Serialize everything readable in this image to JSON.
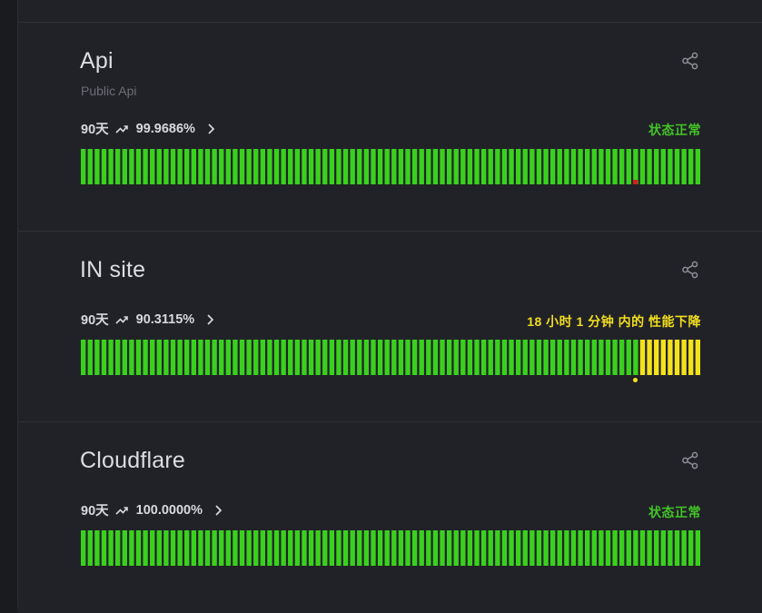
{
  "colors": {
    "ok": "#3ad11e",
    "warn": "#f4e21c",
    "down": "#d61e1e",
    "status_ok_text": "#42c427",
    "status_warn_text": "#f1de1f"
  },
  "monitors": [
    {
      "name": "Api",
      "description": "Public Api",
      "period": "90天",
      "uptime": "99.9686%",
      "status": "状态正常",
      "status_kind": "ok",
      "bar_count": 90,
      "degraded_from": null,
      "incident_bar": 80,
      "incident_kind": "down"
    },
    {
      "name": "IN site",
      "description": "",
      "period": "90天",
      "uptime": "90.3115%",
      "status": "18 小时 1 分钟 内的 性能下降",
      "status_kind": "warn",
      "bar_count": 90,
      "degraded_from": 81,
      "incident_bar": 80,
      "incident_kind": "warn"
    },
    {
      "name": "Cloudflare",
      "description": "",
      "period": "90天",
      "uptime": "100.0000%",
      "status": "状态正常",
      "status_kind": "ok",
      "bar_count": 90,
      "degraded_from": null,
      "incident_bar": null,
      "incident_kind": null
    }
  ]
}
